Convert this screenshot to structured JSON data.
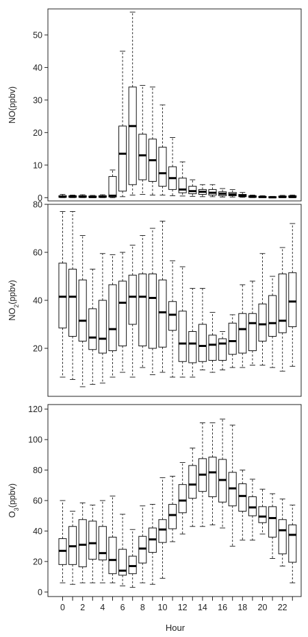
{
  "xlabel": "Hour",
  "x_tick_labels": [
    "0",
    "2",
    "4",
    "6",
    "8",
    "10",
    "12",
    "14",
    "16",
    "18",
    "20",
    "22"
  ],
  "chart_data": [
    {
      "type": "box",
      "ylabel_main": "NO",
      "ylabel_sub": "",
      "ylabel_unit": "(ppbv)",
      "ylim": [
        -1,
        58
      ],
      "yticks": [
        0,
        10,
        20,
        30,
        40,
        50
      ],
      "hours": [
        0,
        1,
        2,
        3,
        4,
        5,
        6,
        7,
        8,
        9,
        10,
        11,
        12,
        13,
        14,
        15,
        16,
        17,
        18,
        19,
        20,
        21,
        22,
        23
      ],
      "boxes": [
        {
          "min": 0.0,
          "q1": 0.1,
          "median": 0.3,
          "q3": 0.6,
          "max": 1.0
        },
        {
          "min": 0.0,
          "q1": 0.1,
          "median": 0.3,
          "q3": 0.6,
          "max": 0.8
        },
        {
          "min": 0.0,
          "q1": 0.1,
          "median": 0.3,
          "q3": 0.6,
          "max": 0.9
        },
        {
          "min": 0.0,
          "q1": 0.1,
          "median": 0.2,
          "q3": 0.5,
          "max": 0.7
        },
        {
          "min": 0.0,
          "q1": 0.1,
          "median": 0.3,
          "q3": 0.6,
          "max": 0.9
        },
        {
          "min": 0.0,
          "q1": 0.2,
          "median": 0.6,
          "q3": 6.5,
          "max": 8.5
        },
        {
          "min": 0.3,
          "q1": 2.0,
          "median": 13.5,
          "q3": 22.0,
          "max": 45.0
        },
        {
          "min": 0.8,
          "q1": 4.0,
          "median": 22.0,
          "q3": 34.0,
          "max": 57.0
        },
        {
          "min": 1.0,
          "q1": 5.5,
          "median": 13.0,
          "q3": 19.5,
          "max": 34.5
        },
        {
          "min": 0.8,
          "q1": 5.0,
          "median": 11.5,
          "q3": 18.0,
          "max": 34.0
        },
        {
          "min": 0.8,
          "q1": 3.5,
          "median": 7.5,
          "q3": 15.5,
          "max": 28.5
        },
        {
          "min": 0.6,
          "q1": 2.5,
          "median": 6.0,
          "q3": 9.5,
          "max": 18.5
        },
        {
          "min": 0.5,
          "q1": 1.5,
          "median": 2.5,
          "q3": 6.0,
          "max": 11.0
        },
        {
          "min": 0.4,
          "q1": 1.2,
          "median": 2.0,
          "q3": 3.5,
          "max": 5.5
        },
        {
          "min": 0.3,
          "q1": 1.0,
          "median": 1.8,
          "q3": 2.5,
          "max": 4.0
        },
        {
          "min": 0.3,
          "q1": 0.8,
          "median": 1.5,
          "q3": 2.5,
          "max": 4.0
        },
        {
          "min": 0.2,
          "q1": 0.6,
          "median": 1.2,
          "q3": 1.8,
          "max": 2.8
        },
        {
          "min": 0.2,
          "q1": 0.6,
          "median": 1.0,
          "q3": 1.6,
          "max": 2.5
        },
        {
          "min": 0.1,
          "q1": 0.3,
          "median": 0.6,
          "q3": 1.0,
          "max": 1.6
        },
        {
          "min": 0.0,
          "q1": 0.1,
          "median": 0.3,
          "q3": 0.6,
          "max": 0.8
        },
        {
          "min": 0.0,
          "q1": 0.05,
          "median": 0.2,
          "q3": 0.4,
          "max": 0.6
        },
        {
          "min": 0.0,
          "q1": 0.05,
          "median": 0.1,
          "q3": 0.3,
          "max": 0.4
        },
        {
          "min": 0.0,
          "q1": 0.1,
          "median": 0.2,
          "q3": 0.5,
          "max": 0.7
        },
        {
          "min": 0.0,
          "q1": 0.1,
          "median": 0.2,
          "q3": 0.6,
          "max": 0.8
        }
      ]
    },
    {
      "type": "box",
      "ylabel_main": "NO",
      "ylabel_sub": "2",
      "ylabel_unit": "(ppbv)",
      "ylim": [
        0,
        80
      ],
      "yticks": [
        20,
        40,
        60,
        80
      ],
      "hours": [
        0,
        1,
        2,
        3,
        4,
        5,
        6,
        7,
        8,
        9,
        10,
        11,
        12,
        13,
        14,
        15,
        16,
        17,
        18,
        19,
        20,
        21,
        22,
        23
      ],
      "boxes": [
        {
          "min": 8,
          "q1": 28.5,
          "median": 41.5,
          "q3": 55.5,
          "max": 77
        },
        {
          "min": 7,
          "q1": 25,
          "median": 41.5,
          "q3": 53,
          "max": 77
        },
        {
          "min": 4,
          "q1": 23,
          "median": 31.5,
          "q3": 48.5,
          "max": 67
        },
        {
          "min": 5,
          "q1": 19.5,
          "median": 24.5,
          "q3": 36.5,
          "max": 53
        },
        {
          "min": 5.5,
          "q1": 18,
          "median": 24,
          "q3": 40,
          "max": 59.5
        },
        {
          "min": 8,
          "q1": 19,
          "median": 28,
          "q3": 46.5,
          "max": 59
        },
        {
          "min": 10,
          "q1": 21,
          "median": 39,
          "q3": 48,
          "max": 60
        },
        {
          "min": 8,
          "q1": 30,
          "median": 41.5,
          "q3": 50.5,
          "max": 63
        },
        {
          "min": 12,
          "q1": 21,
          "median": 41.5,
          "q3": 51,
          "max": 67
        },
        {
          "min": 9,
          "q1": 20,
          "median": 41,
          "q3": 51,
          "max": 70
        },
        {
          "min": 10,
          "q1": 20.5,
          "median": 35,
          "q3": 48.5,
          "max": 73
        },
        {
          "min": 8,
          "q1": 27.5,
          "median": 34,
          "q3": 39.5,
          "max": 56.5
        },
        {
          "min": 8,
          "q1": 14.5,
          "median": 22,
          "q3": 35.5,
          "max": 54
        },
        {
          "min": 8,
          "q1": 14,
          "median": 22,
          "q3": 27,
          "max": 45
        },
        {
          "min": 11,
          "q1": 14.5,
          "median": 21,
          "q3": 30,
          "max": 45
        },
        {
          "min": 10,
          "q1": 15,
          "median": 21.5,
          "q3": 25.5,
          "max": 35
        },
        {
          "min": 11,
          "q1": 15,
          "median": 22,
          "q3": 24,
          "max": 27
        },
        {
          "min": 12,
          "q1": 17.5,
          "median": 23,
          "q3": 30.5,
          "max": 34
        },
        {
          "min": 12,
          "q1": 18,
          "median": 28,
          "q3": 34.5,
          "max": 46.5
        },
        {
          "min": 13,
          "q1": 19,
          "median": 30.5,
          "q3": 34.5,
          "max": 48
        },
        {
          "min": 13,
          "q1": 23,
          "median": 30,
          "q3": 38.5,
          "max": 59.5
        },
        {
          "min": 12,
          "q1": 25,
          "median": 30.5,
          "q3": 42,
          "max": 50
        },
        {
          "min": 10.5,
          "q1": 26.5,
          "median": 31.5,
          "q3": 51,
          "max": 62
        },
        {
          "min": 12.5,
          "q1": 29,
          "median": 39.5,
          "q3": 51.5,
          "max": 72
        }
      ]
    },
    {
      "type": "box",
      "ylabel_main": "O",
      "ylabel_sub": "3",
      "ylabel_unit": "(ppbv)",
      "ylim": [
        -3,
        123
      ],
      "yticks": [
        0,
        20,
        40,
        60,
        80,
        100,
        120
      ],
      "hours": [
        0,
        1,
        2,
        3,
        4,
        5,
        6,
        7,
        8,
        9,
        10,
        11,
        12,
        13,
        14,
        15,
        16,
        17,
        18,
        19,
        20,
        21,
        22,
        23
      ],
      "boxes": [
        {
          "min": 6,
          "q1": 18,
          "median": 27,
          "q3": 35,
          "max": 60
        },
        {
          "min": 5,
          "q1": 18,
          "median": 30,
          "q3": 43,
          "max": 53
        },
        {
          "min": 6,
          "q1": 16.5,
          "median": 31,
          "q3": 47.5,
          "max": 58.5
        },
        {
          "min": 6,
          "q1": 21.5,
          "median": 32,
          "q3": 46.5,
          "max": 57
        },
        {
          "min": 6,
          "q1": 21,
          "median": 25.5,
          "q3": 43,
          "max": 60
        },
        {
          "min": 6,
          "q1": 12,
          "median": 21,
          "q3": 36,
          "max": 63
        },
        {
          "min": 4,
          "q1": 11,
          "median": 14,
          "q3": 28,
          "max": 51
        },
        {
          "min": 3,
          "q1": 12,
          "median": 17,
          "q3": 23.5,
          "max": 41
        },
        {
          "min": 6,
          "q1": 19,
          "median": 28.5,
          "q3": 36.5,
          "max": 56.5
        },
        {
          "min": 5,
          "q1": 26,
          "median": 34.5,
          "q3": 42,
          "max": 57.5
        },
        {
          "min": 9,
          "q1": 32.5,
          "median": 41,
          "q3": 47.5,
          "max": 75
        },
        {
          "min": 33,
          "q1": 41.5,
          "median": 50.5,
          "q3": 57.5,
          "max": 76
        },
        {
          "min": 38,
          "q1": 52,
          "median": 60,
          "q3": 70.5,
          "max": 85
        },
        {
          "min": 43,
          "q1": 61.5,
          "median": 70.5,
          "q3": 83,
          "max": 94.5
        },
        {
          "min": 43,
          "q1": 66,
          "median": 77,
          "q3": 87.5,
          "max": 111
        },
        {
          "min": 44,
          "q1": 62.5,
          "median": 78.5,
          "q3": 88.5,
          "max": 111
        },
        {
          "min": 42,
          "q1": 59,
          "median": 73.5,
          "q3": 87,
          "max": 113.5
        },
        {
          "min": 30,
          "q1": 56.5,
          "median": 68,
          "q3": 78.5,
          "max": 109.5
        },
        {
          "min": 34,
          "q1": 53,
          "median": 63,
          "q3": 71,
          "max": 80
        },
        {
          "min": 34,
          "q1": 50,
          "median": 55.5,
          "q3": 62.5,
          "max": 74
        },
        {
          "min": 38,
          "q1": 45.5,
          "median": 49.5,
          "q3": 56,
          "max": 67.5
        },
        {
          "min": 22,
          "q1": 36,
          "median": 48.5,
          "q3": 56,
          "max": 64.5
        },
        {
          "min": 17,
          "q1": 25,
          "median": 40.5,
          "q3": 47.5,
          "max": 61
        },
        {
          "min": 6,
          "q1": 19.5,
          "median": 37.5,
          "q3": 44,
          "max": 57
        }
      ]
    }
  ]
}
